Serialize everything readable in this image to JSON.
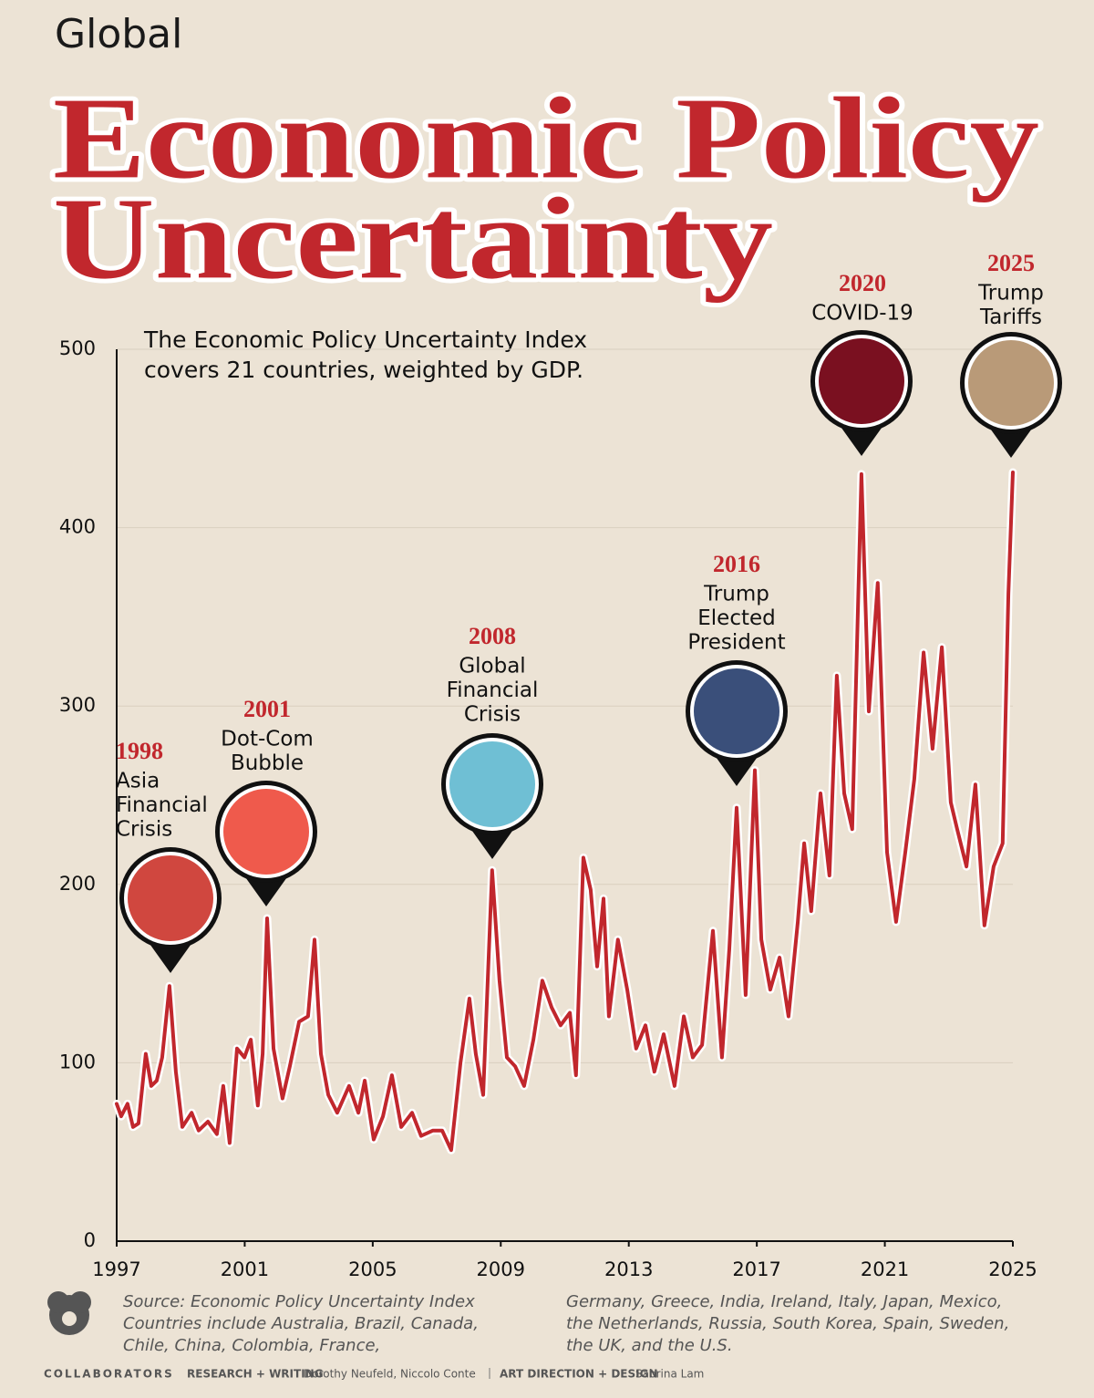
{
  "chart_data": {
    "type": "line",
    "kicker": "Global",
    "title_lines": [
      "Economic Policy",
      "Uncertainty"
    ],
    "subtitle_lines": [
      "The Economic Policy Uncertainty Index",
      "covers 21 countries, weighted by GDP."
    ],
    "x": [
      1997.0,
      1997.14,
      1997.34,
      1997.51,
      1997.68,
      1997.91,
      1998.08,
      1998.25,
      1998.42,
      1998.65,
      1998.85,
      1999.05,
      1999.34,
      1999.56,
      1999.85,
      2000.13,
      2000.33,
      2000.53,
      2000.76,
      2000.99,
      2001.19,
      2001.41,
      2001.56,
      2001.7,
      2001.9,
      2002.18,
      2002.41,
      2002.7,
      2002.98,
      2003.18,
      2003.38,
      2003.61,
      2003.89,
      2004.26,
      2004.55,
      2004.75,
      2005.03,
      2005.32,
      2005.6,
      2005.89,
      2006.23,
      2006.51,
      2006.88,
      2007.17,
      2007.45,
      2007.74,
      2008.02,
      2008.22,
      2008.45,
      2008.73,
      2008.96,
      2009.19,
      2009.45,
      2009.73,
      2010.02,
      2010.3,
      2010.59,
      2010.87,
      2011.16,
      2011.35,
      2011.58,
      2011.81,
      2012.01,
      2012.21,
      2012.38,
      2012.66,
      2012.95,
      2013.23,
      2013.52,
      2013.8,
      2014.09,
      2014.43,
      2014.72,
      2015.0,
      2015.29,
      2015.63,
      2015.91,
      2016.14,
      2016.37,
      2016.65,
      2016.94,
      2017.14,
      2017.42,
      2017.71,
      2017.99,
      2018.28,
      2018.48,
      2018.7,
      2018.99,
      2019.27,
      2019.5,
      2019.73,
      2019.98,
      2020.27,
      2020.5,
      2020.78,
      2021.07,
      2021.35,
      2021.64,
      2021.92,
      2022.21,
      2022.49,
      2022.78,
      2023.06,
      2023.26,
      2023.55,
      2023.83,
      2024.11,
      2024.4,
      2024.68,
      2024.86,
      2025.0
    ],
    "series": [
      {
        "name": "Economic Policy Uncertainty Index",
        "color": "#c1272d",
        "values": [
          77,
          70,
          77,
          64,
          66,
          105,
          87,
          90,
          103,
          143,
          95,
          64,
          72,
          62,
          67,
          60,
          87,
          55,
          108,
          103,
          113,
          76,
          105,
          181,
          108,
          80,
          98,
          123,
          126,
          169,
          105,
          82,
          72,
          87,
          72,
          90,
          57,
          70,
          93,
          64,
          72,
          59,
          62,
          62,
          51,
          100,
          136,
          105,
          82,
          208,
          146,
          103,
          98,
          87,
          113,
          146,
          131,
          121,
          128,
          93,
          215,
          197,
          154,
          192,
          126,
          169,
          141,
          108,
          121,
          95,
          116,
          87,
          126,
          103,
          110,
          174,
          103,
          164,
          243,
          138,
          264,
          169,
          141,
          159,
          126,
          179,
          223,
          185,
          251,
          205,
          317,
          251,
          231,
          430,
          297,
          369,
          218,
          179,
          218,
          259,
          330,
          276,
          333,
          246,
          231,
          210,
          256,
          177,
          210,
          223,
          363,
          431
        ]
      }
    ],
    "xlim": [
      1997,
      2025
    ],
    "xticks": [
      1997,
      2001,
      2005,
      2009,
      2013,
      2017,
      2021,
      2025
    ],
    "ylim": [
      0,
      500
    ],
    "yticks": [
      0,
      100,
      200,
      300,
      400,
      500
    ],
    "grid": true,
    "annotations": [
      {
        "year": "1998",
        "lines": [
          "Asia",
          "Financial",
          "Crisis"
        ]
      },
      {
        "year": "2001",
        "lines": [
          "Dot-Com",
          "Bubble"
        ]
      },
      {
        "year": "2008",
        "lines": [
          "Global",
          "Financial",
          "Crisis"
        ]
      },
      {
        "year": "2016",
        "lines": [
          "Trump",
          "Elected",
          "President"
        ]
      },
      {
        "year": "2020",
        "lines": [
          "COVID-19"
        ]
      },
      {
        "year": "2025",
        "lines": [
          "Trump",
          "Tariffs"
        ]
      }
    ],
    "footer_left": [
      "Source: Economic Policy Uncertainty Index",
      "Countries include Australia, Brazil, Canada,",
      "Chile, China, Colombia, France,"
    ],
    "footer_right": [
      "Germany, Greece, India, Ireland, Italy, Japan, Mexico,",
      "the Netherlands, Russia, South Korea, Spain, Sweden,",
      "the UK, and the U.S."
    ],
    "credits": [
      "COLLABORATORS",
      "RESEARCH + WRITING",
      "Dorothy Neufeld, Niccolo Conte",
      "ART DIRECTION + DESIGN",
      "Sabrina Lam"
    ]
  }
}
